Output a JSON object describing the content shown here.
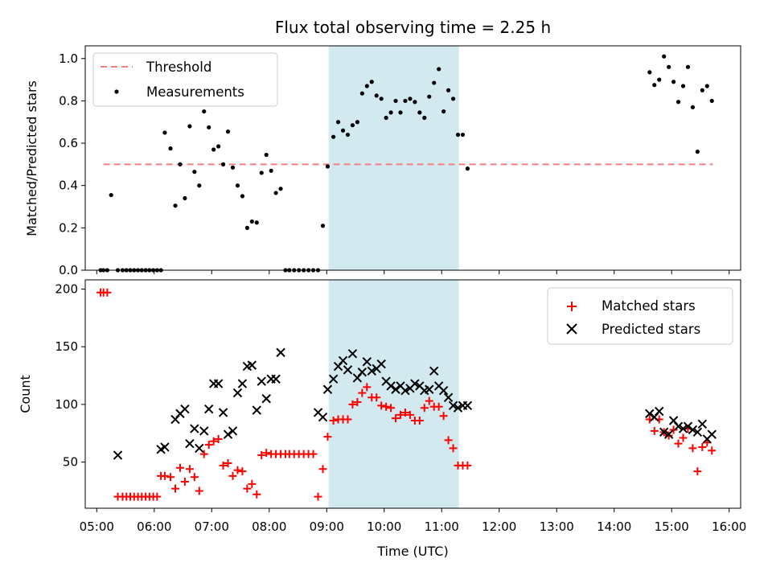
{
  "chart_data": [
    {
      "type": "scatter",
      "title": "Flux total observing time = 2.25 h",
      "xlabel": "",
      "ylabel": "Matched/Predicted stars",
      "xlim": [
        "04:48",
        "16:12"
      ],
      "ylim": [
        0,
        1.06
      ],
      "yticks": [
        "0.0",
        "0.2",
        "0.4",
        "0.6",
        "0.8",
        "1.0"
      ],
      "highlight_span": {
        "start": "09:02",
        "end": "11:18",
        "color": "#d3e9f0"
      },
      "threshold": {
        "name": "Threshold",
        "value": 0.5,
        "x_start": "05:07",
        "x_end": "15:43",
        "color": "#f08080",
        "style": "dashed"
      },
      "legend_position": "upper left",
      "series": [
        {
          "name": "Measurements",
          "color": "#000000",
          "x": [
            "05:04",
            "05:07",
            "05:11",
            "05:15",
            "05:22",
            "05:27",
            "05:31",
            "05:35",
            "05:39",
            "05:43",
            "05:47",
            "05:51",
            "05:55",
            "05:59",
            "06:03",
            "06:07",
            "06:11",
            "06:17",
            "06:22",
            "06:27",
            "06:32",
            "06:37",
            "06:42",
            "06:47",
            "06:52",
            "06:57",
            "07:02",
            "07:07",
            "07:12",
            "07:17",
            "07:22",
            "07:27",
            "07:32",
            "07:37",
            "07:42",
            "07:47",
            "07:52",
            "07:57",
            "08:02",
            "08:07",
            "08:12",
            "08:17",
            "08:21",
            "08:26",
            "08:31",
            "08:36",
            "08:41",
            "08:46",
            "08:51",
            "08:56",
            "09:01",
            "09:07",
            "09:12",
            "09:17",
            "09:22",
            "09:27",
            "09:32",
            "09:37",
            "09:42",
            "09:47",
            "09:52",
            "09:57",
            "10:02",
            "10:07",
            "10:12",
            "10:17",
            "10:22",
            "10:27",
            "10:32",
            "10:37",
            "10:42",
            "10:47",
            "10:52",
            "10:57",
            "11:02",
            "11:07",
            "11:12",
            "11:17",
            "11:22",
            "11:27",
            "14:37",
            "14:42",
            "14:47",
            "14:52",
            "14:57",
            "15:02",
            "15:07",
            "15:12",
            "15:17",
            "15:22",
            "15:27",
            "15:32",
            "15:37",
            "15:42"
          ],
          "y": [
            0,
            0,
            0,
            0.355,
            0,
            0,
            0,
            0,
            0,
            0,
            0,
            0,
            0,
            0,
            0,
            0,
            0.65,
            0.575,
            0.305,
            0.5,
            0.34,
            0.68,
            0.465,
            0.4,
            0.75,
            0.675,
            0.57,
            0.585,
            0.5,
            0.655,
            0.485,
            0.4,
            0.35,
            0.2,
            0.23,
            0.225,
            0.46,
            0.545,
            0.47,
            0.365,
            0.385,
            0,
            0,
            0,
            0,
            0,
            0,
            0,
            0,
            0.21,
            0.49,
            0.63,
            0.7,
            0.66,
            0.64,
            0.685,
            0.7,
            0.835,
            0.87,
            0.89,
            0.825,
            0.81,
            0.72,
            0.745,
            0.8,
            0.745,
            0.8,
            0.81,
            0.795,
            0.745,
            0.72,
            0.82,
            0.885,
            0.95,
            0.75,
            0.85,
            0.81,
            0.64,
            0.64,
            0.48,
            0.935,
            0.875,
            0.9,
            1.01,
            0.96,
            0.89,
            0.795,
            0.87,
            0.96,
            0.77,
            0.56,
            0.85,
            0.87,
            0.8
          ]
        }
      ]
    },
    {
      "type": "scatter",
      "title": "",
      "xlabel": "Time (UTC)",
      "ylabel": "Count",
      "xlim": [
        "04:48",
        "16:12"
      ],
      "ylim": [
        10,
        208
      ],
      "yticks": [
        "50",
        "100",
        "150",
        "200"
      ],
      "xticks": [
        "05:00",
        "06:00",
        "07:00",
        "08:00",
        "09:00",
        "10:00",
        "11:00",
        "12:00",
        "13:00",
        "14:00",
        "15:00",
        "16:00"
      ],
      "highlight_span": {
        "start": "09:02",
        "end": "11:18",
        "color": "#d3e9f0"
      },
      "legend_position": "upper right",
      "series": [
        {
          "name": "Matched stars",
          "marker": "+",
          "color": "#ff0000",
          "x": [
            "05:04",
            "05:07",
            "05:11",
            "05:22",
            "05:27",
            "05:31",
            "05:35",
            "05:39",
            "05:43",
            "05:47",
            "05:51",
            "05:55",
            "05:59",
            "06:03",
            "06:07",
            "06:11",
            "06:17",
            "06:22",
            "06:27",
            "06:32",
            "06:37",
            "06:42",
            "06:47",
            "06:52",
            "06:57",
            "07:02",
            "07:07",
            "07:12",
            "07:17",
            "07:22",
            "07:27",
            "07:32",
            "07:37",
            "07:42",
            "07:47",
            "07:52",
            "07:57",
            "08:02",
            "08:07",
            "08:12",
            "08:17",
            "08:21",
            "08:26",
            "08:31",
            "08:36",
            "08:41",
            "08:46",
            "08:51",
            "08:56",
            "09:01",
            "09:07",
            "09:12",
            "09:17",
            "09:22",
            "09:27",
            "09:32",
            "09:37",
            "09:42",
            "09:47",
            "09:52",
            "09:57",
            "10:02",
            "10:07",
            "10:12",
            "10:17",
            "10:22",
            "10:27",
            "10:32",
            "10:37",
            "10:42",
            "10:47",
            "10:52",
            "10:57",
            "11:02",
            "11:07",
            "11:12",
            "11:17",
            "11:22",
            "11:27",
            "14:37",
            "14:42",
            "14:47",
            "14:52",
            "14:57",
            "15:02",
            "15:07",
            "15:12",
            "15:17",
            "15:22",
            "15:27",
            "15:32",
            "15:37",
            "15:42"
          ],
          "y": [
            197,
            197,
            197,
            20,
            20,
            20,
            20,
            20,
            20,
            20,
            20,
            20,
            20,
            20,
            38,
            38,
            37,
            27,
            45,
            33,
            44,
            37,
            25,
            57,
            65,
            68,
            70,
            47,
            49,
            38,
            43,
            42,
            27,
            31,
            22,
            56,
            58,
            57,
            57,
            57,
            57,
            57,
            57,
            57,
            57,
            57,
            57,
            20,
            44,
            72,
            86,
            87,
            87,
            87,
            100,
            102,
            110,
            115,
            106,
            106,
            99,
            98,
            97,
            88,
            91,
            93,
            91,
            86,
            86,
            97,
            103,
            98,
            98,
            90,
            69,
            62,
            47,
            47,
            47,
            87,
            77,
            87,
            76,
            73,
            78,
            66,
            71,
            79,
            62,
            42,
            63,
            67,
            60
          ]
        },
        {
          "name": "Predicted stars",
          "marker": "x",
          "color": "#000000",
          "x": [
            "05:22",
            "06:07",
            "06:11",
            "06:22",
            "06:27",
            "06:32",
            "06:37",
            "06:42",
            "06:47",
            "06:52",
            "06:57",
            "07:02",
            "07:07",
            "07:12",
            "07:17",
            "07:22",
            "07:27",
            "07:32",
            "07:37",
            "07:42",
            "07:47",
            "07:52",
            "07:57",
            "08:02",
            "08:07",
            "08:12",
            "08:51",
            "08:56",
            "09:01",
            "09:07",
            "09:12",
            "09:17",
            "09:22",
            "09:27",
            "09:32",
            "09:37",
            "09:42",
            "09:47",
            "09:52",
            "09:57",
            "10:02",
            "10:07",
            "10:12",
            "10:17",
            "10:22",
            "10:27",
            "10:32",
            "10:37",
            "10:42",
            "10:47",
            "10:52",
            "10:57",
            "11:02",
            "11:07",
            "11:12",
            "11:17",
            "11:22",
            "11:27",
            "14:37",
            "14:42",
            "14:47",
            "14:52",
            "14:57",
            "15:02",
            "15:07",
            "15:12",
            "15:17",
            "15:22",
            "15:27",
            "15:32",
            "15:37",
            "15:42"
          ],
          "y": [
            56,
            61,
            63,
            87,
            92,
            96,
            66,
            79,
            62,
            77,
            96,
            118,
            118,
            93,
            74,
            77,
            110,
            118,
            133,
            134,
            95,
            120,
            105,
            122,
            122,
            145,
            93,
            89,
            113,
            122,
            133,
            138,
            130,
            144,
            123,
            128,
            137,
            129,
            131,
            135,
            120,
            116,
            113,
            116,
            112,
            114,
            118,
            116,
            112,
            113,
            129,
            116,
            112,
            106,
            99,
            97,
            99,
            99,
            92,
            89,
            94,
            76,
            74,
            86,
            81,
            79,
            81,
            78,
            76,
            83,
            70,
            74
          ]
        }
      ]
    }
  ]
}
